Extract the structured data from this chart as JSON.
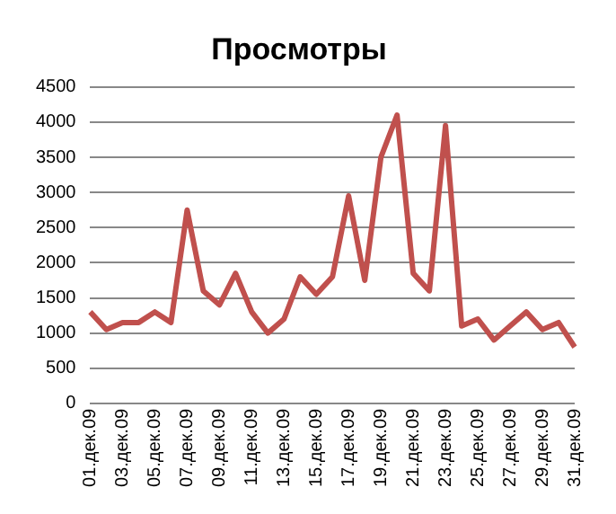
{
  "chart_data": {
    "type": "line",
    "title": "Просмотры",
    "categories": [
      "01.дек.09",
      null,
      "03.дек.09",
      null,
      "05.дек.09",
      null,
      "07.дек.09",
      null,
      "09.дек.09",
      null,
      "11.дек.09",
      null,
      "13.дек.09",
      null,
      "15.дек.09",
      null,
      "17.дек.09",
      null,
      "19.дек.09",
      null,
      "21.дек.09",
      null,
      "23.дек.09",
      null,
      "25.дек.09",
      null,
      "27.дек.09",
      null,
      "29.дек.09",
      null,
      "31.дек.09"
    ],
    "series": [
      {
        "color": "#c0504d",
        "values": [
          1300,
          1050,
          1150,
          1150,
          1300,
          1150,
          2750,
          1600,
          1400,
          1850,
          1300,
          1000,
          1200,
          1800,
          1550,
          1800,
          2950,
          1750,
          3500,
          4100,
          1850,
          1600,
          3950,
          1100,
          1200,
          900,
          1100,
          1300,
          1050,
          1150,
          800
        ]
      }
    ],
    "ylim": [
      0,
      4500
    ],
    "yticks": [
      0,
      500,
      1000,
      1500,
      2000,
      2500,
      3000,
      3500,
      4000,
      4500
    ],
    "grid": "y",
    "legend": false,
    "marker": "none",
    "line_style": "solid"
  }
}
